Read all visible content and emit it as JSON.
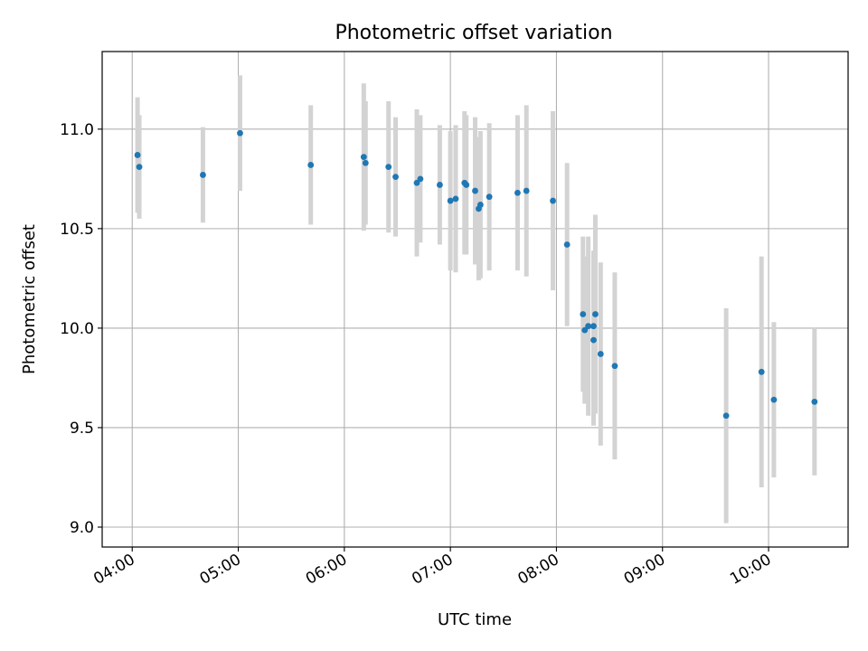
{
  "chart_data": {
    "type": "scatter",
    "title": "Photometric offset variation",
    "xlabel": "UTC time",
    "ylabel": "Photometric offset",
    "grid": true,
    "xticks": [
      "04:00",
      "05:00",
      "06:00",
      "07:00",
      "08:00",
      "09:00",
      "10:00"
    ],
    "yticks": [
      "9.0",
      "9.5",
      "10.0",
      "10.5",
      "11.0"
    ],
    "xlim": [
      "03:43",
      "10:45"
    ],
    "ylim": [
      8.9,
      11.39
    ],
    "colors": {
      "point": "#1f77b4",
      "errorbar": "#d3d3d3",
      "grid": "#b0b0b0"
    },
    "points": [
      {
        "x": "04:03",
        "y": 10.87,
        "err": 0.29
      },
      {
        "x": "04:04",
        "y": 10.81,
        "err": 0.26
      },
      {
        "x": "04:40",
        "y": 10.77,
        "err": 0.24
      },
      {
        "x": "05:01",
        "y": 10.98,
        "err": 0.29
      },
      {
        "x": "05:41",
        "y": 10.82,
        "err": 0.3
      },
      {
        "x": "06:11",
        "y": 10.86,
        "err": 0.37
      },
      {
        "x": "06:12",
        "y": 10.83,
        "err": 0.31
      },
      {
        "x": "06:25",
        "y": 10.81,
        "err": 0.33
      },
      {
        "x": "06:29",
        "y": 10.76,
        "err": 0.3
      },
      {
        "x": "06:41",
        "y": 10.73,
        "err": 0.37
      },
      {
        "x": "06:43",
        "y": 10.75,
        "err": 0.32
      },
      {
        "x": "06:54",
        "y": 10.72,
        "err": 0.3
      },
      {
        "x": "07:00",
        "y": 10.64,
        "err": 0.35
      },
      {
        "x": "07:03",
        "y": 10.65,
        "err": 0.37
      },
      {
        "x": "07:08",
        "y": 10.73,
        "err": 0.36
      },
      {
        "x": "07:09",
        "y": 10.72,
        "err": 0.35
      },
      {
        "x": "07:14",
        "y": 10.69,
        "err": 0.37
      },
      {
        "x": "07:16",
        "y": 10.6,
        "err": 0.36
      },
      {
        "x": "07:17",
        "y": 10.62,
        "err": 0.37
      },
      {
        "x": "07:22",
        "y": 10.66,
        "err": 0.37
      },
      {
        "x": "07:38",
        "y": 10.68,
        "err": 0.39
      },
      {
        "x": "07:43",
        "y": 10.69,
        "err": 0.43
      },
      {
        "x": "07:58",
        "y": 10.64,
        "err": 0.45
      },
      {
        "x": "08:06",
        "y": 10.42,
        "err": 0.41
      },
      {
        "x": "08:15",
        "y": 10.07,
        "err": 0.39
      },
      {
        "x": "08:16",
        "y": 9.99,
        "err": 0.37
      },
      {
        "x": "08:18",
        "y": 10.01,
        "err": 0.45
      },
      {
        "x": "08:21",
        "y": 10.01,
        "err": 0.38
      },
      {
        "x": "08:21",
        "y": 9.94,
        "err": 0.43
      },
      {
        "x": "08:22",
        "y": 10.07,
        "err": 0.5
      },
      {
        "x": "08:25",
        "y": 9.87,
        "err": 0.46
      },
      {
        "x": "08:33",
        "y": 9.81,
        "err": 0.47
      },
      {
        "x": "09:36",
        "y": 9.56,
        "err": 0.54
      },
      {
        "x": "09:56",
        "y": 9.78,
        "err": 0.58
      },
      {
        "x": "10:03",
        "y": 9.64,
        "err": 0.39
      },
      {
        "x": "10:26",
        "y": 9.63,
        "err": 0.37
      }
    ]
  }
}
